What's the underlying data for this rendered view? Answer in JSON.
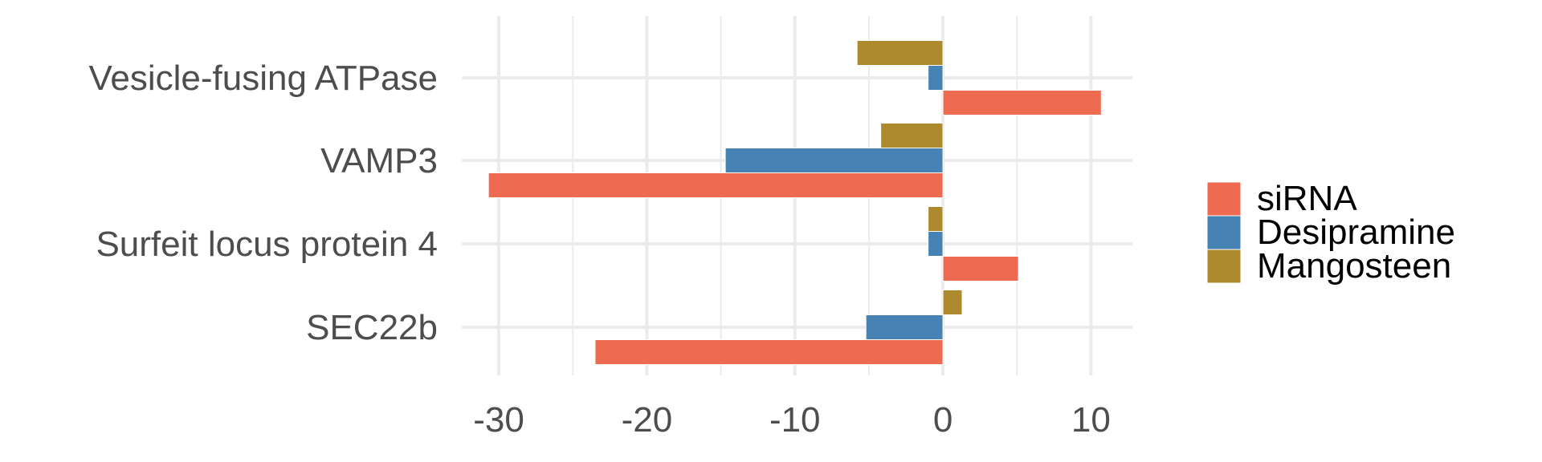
{
  "chart_data": {
    "type": "bar",
    "orientation": "horizontal",
    "title": "",
    "xlabel": "",
    "ylabel": "",
    "categories": [
      "Vesicle-fusing ATPase",
      "VAMP3",
      "Surfeit locus protein 4",
      "SEC22b"
    ],
    "series": [
      {
        "name": "siRNA",
        "color": "#EE6A50",
        "values": [
          10.7,
          -30.7,
          5.1,
          -23.5
        ]
      },
      {
        "name": "Desipramine",
        "color": "#4682B4",
        "values": [
          -1.0,
          -14.7,
          -1.0,
          -5.2
        ]
      },
      {
        "name": "Mangosteen",
        "color": "#AD8A2E",
        "values": [
          -5.8,
          -4.2,
          -1.0,
          1.3
        ]
      }
    ],
    "xlim": [
      -32.5,
      12.8
    ],
    "xticks": [
      -30,
      -20,
      -10,
      0,
      10
    ],
    "xtick_labels": [
      "-30",
      "-20",
      "-10",
      "0",
      "10"
    ],
    "grid": true,
    "legend_position": "right",
    "legend_order": [
      "siRNA",
      "Desipramine",
      "Mangosteen"
    ]
  }
}
